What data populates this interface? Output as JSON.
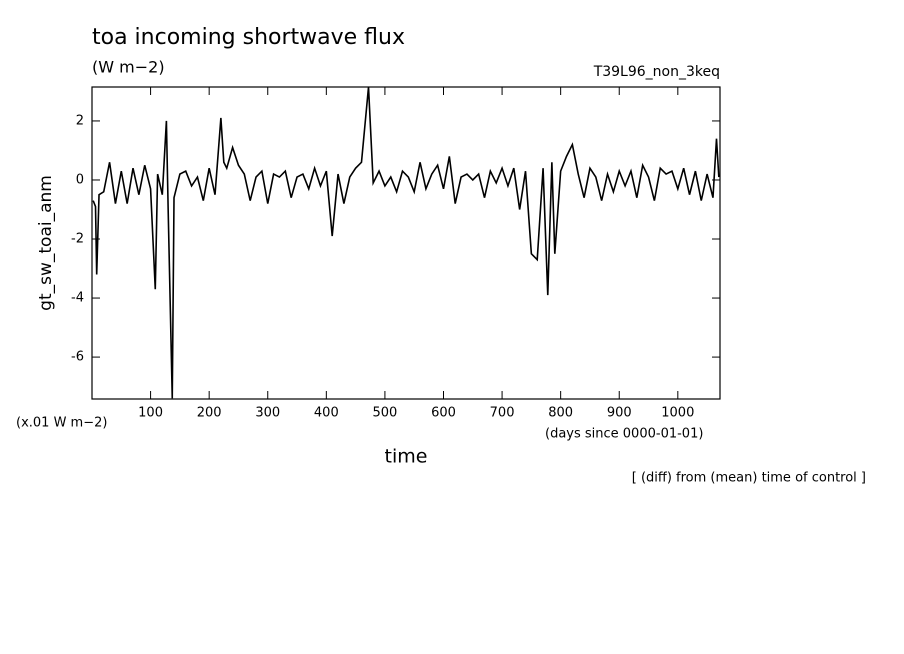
{
  "chart_data": {
    "type": "line",
    "title": "toa incoming shortwave flux",
    "subtitle": "(W m−2)",
    "run_label": "T39L96_non_3keq",
    "y_label": "gt_sw_toai_anm",
    "y_unit": "(x.01 W m−2)",
    "x_label": "time",
    "x_unit": "(days since 0000-01-01)",
    "note": "[ (diff) from (mean) time of control ]",
    "x": [
      2,
      6,
      8,
      12,
      20,
      30,
      40,
      50,
      60,
      70,
      80,
      90,
      100,
      108,
      112,
      120,
      127,
      130,
      137,
      140,
      150,
      160,
      170,
      180,
      190,
      200,
      210,
      220,
      225,
      230,
      240,
      250,
      260,
      270,
      280,
      290,
      300,
      310,
      320,
      330,
      340,
      350,
      360,
      370,
      380,
      390,
      400,
      410,
      420,
      430,
      440,
      450,
      460,
      472,
      480,
      490,
      500,
      510,
      520,
      530,
      540,
      550,
      560,
      570,
      580,
      590,
      600,
      610,
      620,
      630,
      640,
      650,
      660,
      670,
      680,
      690,
      700,
      710,
      720,
      730,
      740,
      750,
      760,
      770,
      778,
      785,
      790,
      800,
      810,
      820,
      830,
      840,
      850,
      860,
      870,
      880,
      890,
      900,
      910,
      920,
      930,
      940,
      950,
      960,
      970,
      980,
      990,
      1000,
      1010,
      1020,
      1030,
      1040,
      1050,
      1060,
      1066,
      1070
    ],
    "series": [
      {
        "name": "gt_sw_toai_anm",
        "color": "#000000",
        "values": [
          -0.7,
          -0.9,
          -3.2,
          -0.5,
          -0.4,
          0.6,
          -0.8,
          0.3,
          -0.8,
          0.4,
          -0.5,
          0.5,
          -0.3,
          -3.7,
          0.2,
          -0.5,
          2.0,
          -1.0,
          -7.4,
          -0.6,
          0.2,
          0.3,
          -0.2,
          0.1,
          -0.7,
          0.4,
          -0.5,
          2.1,
          0.6,
          0.4,
          1.1,
          0.5,
          0.2,
          -0.7,
          0.1,
          0.3,
          -0.8,
          0.2,
          0.1,
          0.3,
          -0.6,
          0.1,
          0.2,
          -0.3,
          0.4,
          -0.2,
          0.3,
          -1.9,
          0.2,
          -0.8,
          0.1,
          0.4,
          0.6,
          3.15,
          -0.1,
          0.3,
          -0.2,
          0.1,
          -0.4,
          0.3,
          0.1,
          -0.4,
          0.6,
          -0.3,
          0.2,
          0.5,
          -0.3,
          0.8,
          -0.8,
          0.1,
          0.2,
          0.0,
          0.2,
          -0.6,
          0.3,
          -0.1,
          0.4,
          -0.2,
          0.4,
          -1.0,
          0.3,
          -2.5,
          -2.7,
          0.4,
          -3.9,
          0.6,
          -2.5,
          0.3,
          0.8,
          1.2,
          0.2,
          -0.6,
          0.4,
          0.1,
          -0.7,
          0.2,
          -0.4,
          0.3,
          -0.2,
          0.3,
          -0.6,
          0.5,
          0.1,
          -0.7,
          0.4,
          0.2,
          0.3,
          -0.3,
          0.4,
          -0.5,
          0.3,
          -0.7,
          0.2,
          -0.6,
          1.4,
          0.1
        ]
      }
    ],
    "xlim": [
      0,
      1072
    ],
    "ylim": [
      -7.42,
      3.15
    ],
    "xticks": [
      100,
      200,
      300,
      400,
      500,
      600,
      700,
      800,
      900,
      1000
    ],
    "yticks": [
      -6,
      -4,
      -2,
      0,
      2
    ],
    "grid": false
  }
}
